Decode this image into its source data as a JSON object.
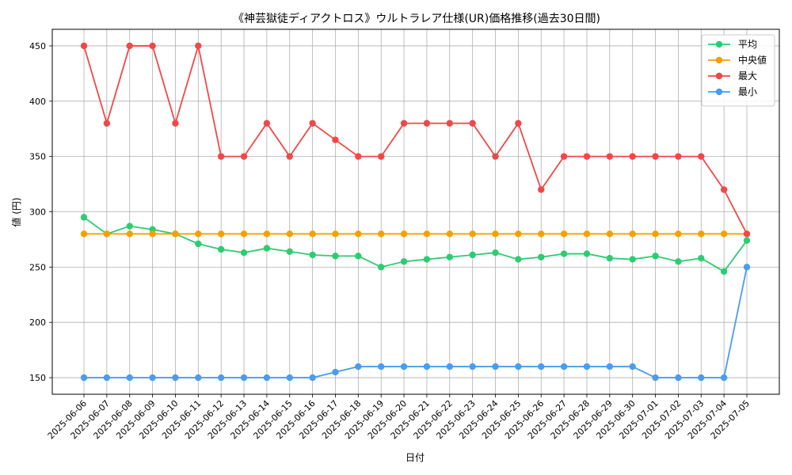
{
  "chart_data": {
    "type": "line",
    "title": "《神芸獄徒ディアクトロス》ウルトラレア仕様(UR)価格推移(過去30日間)",
    "xlabel": "日付",
    "ylabel": "値 (円)",
    "ylim": [
      135,
      465
    ],
    "yticks": [
      150,
      200,
      250,
      300,
      350,
      400,
      450
    ],
    "grid": true,
    "legend_position": "top-right",
    "x": [
      "2025-06-06",
      "2025-06-07",
      "2025-06-08",
      "2025-06-09",
      "2025-06-10",
      "2025-06-11",
      "2025-06-12",
      "2025-06-13",
      "2025-06-14",
      "2025-06-15",
      "2025-06-16",
      "2025-06-17",
      "2025-06-18",
      "2025-06-19",
      "2025-06-20",
      "2025-06-21",
      "2025-06-22",
      "2025-06-23",
      "2025-06-24",
      "2025-06-25",
      "2025-06-26",
      "2025-06-27",
      "2025-06-28",
      "2025-06-29",
      "2025-06-30",
      "2025-07-01",
      "2025-07-02",
      "2025-07-03",
      "2025-07-04",
      "2025-07-05"
    ],
    "series": [
      {
        "name": "平均",
        "color": "#2ecc71",
        "values": [
          295,
          280,
          287,
          284,
          280,
          271,
          266,
          263,
          267,
          264,
          261,
          260,
          260,
          250,
          255,
          257,
          259,
          261,
          263,
          257,
          259,
          262,
          262,
          258,
          257,
          260,
          255,
          258,
          246,
          274
        ]
      },
      {
        "name": "中央値",
        "color": "#f5a000",
        "values": [
          280,
          280,
          280,
          280,
          280,
          280,
          280,
          280,
          280,
          280,
          280,
          280,
          280,
          280,
          280,
          280,
          280,
          280,
          280,
          280,
          280,
          280,
          280,
          280,
          280,
          280,
          280,
          280,
          280,
          280
        ]
      },
      {
        "name": "最大",
        "color": "#f04848",
        "values": [
          450,
          380,
          450,
          450,
          380,
          450,
          350,
          350,
          380,
          350,
          380,
          365,
          350,
          350,
          380,
          380,
          380,
          380,
          350,
          380,
          320,
          350,
          350,
          350,
          350,
          350,
          350,
          350,
          320,
          280
        ]
      },
      {
        "name": "最小",
        "color": "#4a9cf0",
        "values": [
          150,
          150,
          150,
          150,
          150,
          150,
          150,
          150,
          150,
          150,
          150,
          155,
          160,
          160,
          160,
          160,
          160,
          160,
          160,
          160,
          160,
          160,
          160,
          160,
          160,
          150,
          150,
          150,
          150,
          250
        ]
      }
    ]
  }
}
